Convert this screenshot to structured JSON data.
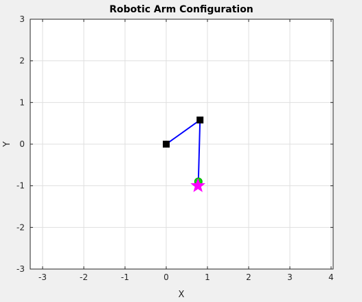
{
  "chart_data": {
    "type": "line",
    "title": "Robotic Arm Configuration",
    "xlabel": "X",
    "ylabel": "Y",
    "xlim": [
      -3.3,
      4.05
    ],
    "ylim": [
      -3,
      3
    ],
    "xticks": [
      -3,
      -2,
      -1,
      0,
      1,
      2,
      3,
      4
    ],
    "yticks": [
      -3,
      -2,
      -1,
      0,
      1,
      2,
      3
    ],
    "grid": true,
    "series": [
      {
        "kind": "arm-links",
        "color": "#0000ff",
        "x": [
          0,
          0.82,
          0.78
        ],
        "y": [
          0,
          0.58,
          -0.9
        ]
      },
      {
        "kind": "joints",
        "marker": "square",
        "color": "#000000",
        "x": [
          0,
          0.82
        ],
        "y": [
          0,
          0.58
        ]
      },
      {
        "kind": "end-effector",
        "marker": "circle",
        "color": "#00dd00",
        "x": [
          0.78
        ],
        "y": [
          -0.9
        ]
      },
      {
        "kind": "target",
        "marker": "star",
        "color": "#ff00ff",
        "x": [
          0.77
        ],
        "y": [
          -1.0
        ]
      }
    ]
  }
}
